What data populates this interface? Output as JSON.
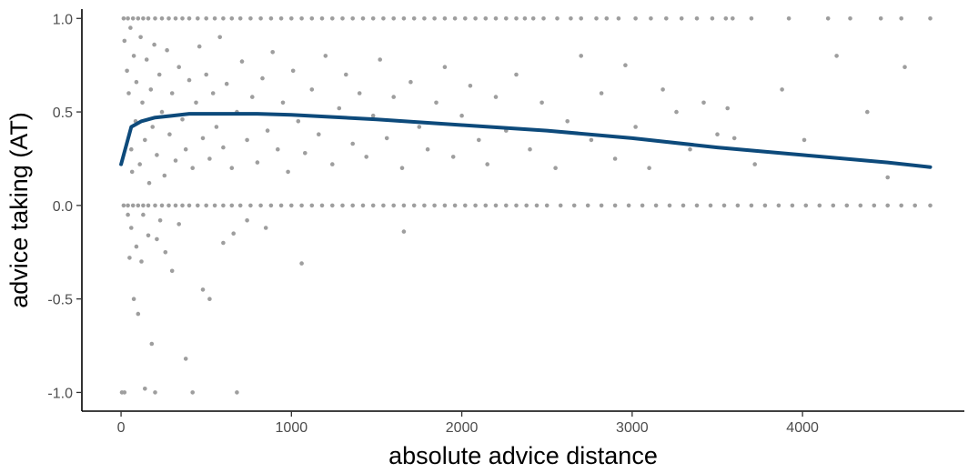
{
  "chart_data": {
    "type": "scatter",
    "title": "",
    "xlabel": "absolute advice distance",
    "ylabel": "advice taking (AT)",
    "xlim": [
      -230,
      4950
    ],
    "ylim": [
      -1.1,
      1.05
    ],
    "x_ticks": [
      {
        "value": 0,
        "label": "0"
      },
      {
        "value": 1000,
        "label": "1000"
      },
      {
        "value": 2000,
        "label": "2000"
      },
      {
        "value": 3000,
        "label": "3000"
      },
      {
        "value": 4000,
        "label": "4000"
      }
    ],
    "y_ticks": [
      {
        "value": 1.0,
        "label": "1.0"
      },
      {
        "value": 0.5,
        "label": "0.5"
      },
      {
        "value": 0.0,
        "label": "0.0"
      },
      {
        "value": -0.5,
        "label": "-0.5"
      },
      {
        "value": -1.0,
        "label": "-1.0"
      }
    ],
    "grid": false,
    "legend": "none",
    "colors": {
      "points": "#9e9e9e",
      "fit_line": "#0d4a7b"
    },
    "series": [
      {
        "kind": "points",
        "points_at_one": [
          [
            15,
            1
          ],
          [
            40,
            1
          ],
          [
            70,
            1
          ],
          [
            100,
            1
          ],
          [
            130,
            1
          ],
          [
            160,
            1
          ],
          [
            200,
            1
          ],
          [
            240,
            1
          ],
          [
            280,
            1
          ],
          [
            320,
            1
          ],
          [
            360,
            1
          ],
          [
            400,
            1
          ],
          [
            450,
            1
          ],
          [
            500,
            1
          ],
          [
            550,
            1
          ],
          [
            600,
            1
          ],
          [
            650,
            1
          ],
          [
            700,
            1
          ],
          [
            760,
            1
          ],
          [
            820,
            1
          ],
          [
            880,
            1
          ],
          [
            940,
            1
          ],
          [
            1000,
            1
          ],
          [
            1060,
            1
          ],
          [
            1120,
            1
          ],
          [
            1180,
            1
          ],
          [
            1240,
            1
          ],
          [
            1300,
            1
          ],
          [
            1360,
            1
          ],
          [
            1420,
            1
          ],
          [
            1480,
            1
          ],
          [
            1540,
            1
          ],
          [
            1600,
            1
          ],
          [
            1660,
            1
          ],
          [
            1720,
            1
          ],
          [
            1780,
            1
          ],
          [
            1840,
            1
          ],
          [
            1900,
            1
          ],
          [
            1960,
            1
          ],
          [
            2020,
            1
          ],
          [
            2080,
            1
          ],
          [
            2140,
            1
          ],
          [
            2200,
            1
          ],
          [
            2260,
            1
          ],
          [
            2320,
            1
          ],
          [
            2370,
            1
          ],
          [
            2420,
            1
          ],
          [
            2480,
            1
          ],
          [
            2560,
            1
          ],
          [
            2640,
            1
          ],
          [
            2700,
            1
          ],
          [
            2790,
            1
          ],
          [
            2850,
            1
          ],
          [
            2920,
            1
          ],
          [
            3020,
            1
          ],
          [
            3110,
            1
          ],
          [
            3200,
            1
          ],
          [
            3290,
            1
          ],
          [
            3380,
            1
          ],
          [
            3470,
            1
          ],
          [
            3550,
            1
          ],
          [
            3590,
            1
          ],
          [
            3700,
            1
          ],
          [
            3920,
            1
          ],
          [
            4150,
            1
          ],
          [
            4280,
            1
          ],
          [
            4460,
            1
          ],
          [
            4580,
            1
          ],
          [
            4750,
            1
          ]
        ],
        "points_at_zero": [
          [
            15,
            0
          ],
          [
            40,
            0
          ],
          [
            70,
            0
          ],
          [
            100,
            0
          ],
          [
            130,
            0
          ],
          [
            160,
            0
          ],
          [
            200,
            0
          ],
          [
            240,
            0
          ],
          [
            280,
            0
          ],
          [
            320,
            0
          ],
          [
            360,
            0
          ],
          [
            400,
            0
          ],
          [
            450,
            0
          ],
          [
            500,
            0
          ],
          [
            550,
            0
          ],
          [
            600,
            0
          ],
          [
            650,
            0
          ],
          [
            700,
            0
          ],
          [
            760,
            0
          ],
          [
            820,
            0
          ],
          [
            880,
            0
          ],
          [
            940,
            0
          ],
          [
            1000,
            0
          ],
          [
            1060,
            0
          ],
          [
            1120,
            0
          ],
          [
            1180,
            0
          ],
          [
            1240,
            0
          ],
          [
            1300,
            0
          ],
          [
            1360,
            0
          ],
          [
            1420,
            0
          ],
          [
            1480,
            0
          ],
          [
            1540,
            0
          ],
          [
            1600,
            0
          ],
          [
            1660,
            0
          ],
          [
            1720,
            0
          ],
          [
            1780,
            0
          ],
          [
            1840,
            0
          ],
          [
            1900,
            0
          ],
          [
            1960,
            0
          ],
          [
            2020,
            0
          ],
          [
            2080,
            0
          ],
          [
            2140,
            0
          ],
          [
            2200,
            0
          ],
          [
            2260,
            0
          ],
          [
            2320,
            0
          ],
          [
            2380,
            0
          ],
          [
            2440,
            0
          ],
          [
            2500,
            0
          ],
          [
            2580,
            0
          ],
          [
            2660,
            0
          ],
          [
            2740,
            0
          ],
          [
            2820,
            0
          ],
          [
            2900,
            0
          ],
          [
            2980,
            0
          ],
          [
            3060,
            0
          ],
          [
            3140,
            0
          ],
          [
            3220,
            0
          ],
          [
            3300,
            0
          ],
          [
            3380,
            0
          ],
          [
            3460,
            0
          ],
          [
            3540,
            0
          ],
          [
            3620,
            0
          ],
          [
            3700,
            0
          ],
          [
            3780,
            0
          ],
          [
            3860,
            0
          ],
          [
            3940,
            0
          ],
          [
            4020,
            0
          ],
          [
            4100,
            0
          ],
          [
            4180,
            0
          ],
          [
            4260,
            0
          ],
          [
            4340,
            0
          ],
          [
            4420,
            0
          ],
          [
            4500,
            0
          ],
          [
            4580,
            0
          ],
          [
            4660,
            0
          ],
          [
            4750,
            0
          ]
        ],
        "points_between": [
          [
            20,
            0.88
          ],
          [
            35,
            0.72
          ],
          [
            45,
            0.6
          ],
          [
            55,
            0.95
          ],
          [
            60,
            0.3
          ],
          [
            65,
            0.18
          ],
          [
            75,
            0.8
          ],
          [
            85,
            0.45
          ],
          [
            90,
            0.66
          ],
          [
            110,
            0.22
          ],
          [
            115,
            0.9
          ],
          [
            125,
            0.55
          ],
          [
            140,
            0.35
          ],
          [
            150,
            0.78
          ],
          [
            165,
            0.12
          ],
          [
            175,
            0.62
          ],
          [
            185,
            0.42
          ],
          [
            195,
            0.86
          ],
          [
            210,
            0.27
          ],
          [
            225,
            0.7
          ],
          [
            240,
            0.5
          ],
          [
            255,
            0.16
          ],
          [
            270,
            0.83
          ],
          [
            285,
            0.38
          ],
          [
            300,
            0.6
          ],
          [
            320,
            0.24
          ],
          [
            340,
            0.74
          ],
          [
            360,
            0.46
          ],
          [
            380,
            0.3
          ],
          [
            400,
            0.67
          ],
          [
            420,
            0.2
          ],
          [
            440,
            0.55
          ],
          [
            460,
            0.85
          ],
          [
            480,
            0.36
          ],
          [
            500,
            0.7
          ],
          [
            520,
            0.25
          ],
          [
            540,
            0.6
          ],
          [
            560,
            0.42
          ],
          [
            580,
            0.9
          ],
          [
            600,
            0.31
          ],
          [
            620,
            0.65
          ],
          [
            650,
            0.2
          ],
          [
            680,
            0.5
          ],
          [
            710,
            0.77
          ],
          [
            740,
            0.35
          ],
          [
            770,
            0.58
          ],
          [
            800,
            0.23
          ],
          [
            830,
            0.68
          ],
          [
            860,
            0.4
          ],
          [
            890,
            0.82
          ],
          [
            920,
            0.3
          ],
          [
            950,
            0.55
          ],
          [
            980,
            0.18
          ],
          [
            1010,
            0.72
          ],
          [
            1040,
            0.45
          ],
          [
            1080,
            0.28
          ],
          [
            1120,
            0.62
          ],
          [
            1160,
            0.38
          ],
          [
            1200,
            0.8
          ],
          [
            1240,
            0.22
          ],
          [
            1280,
            0.52
          ],
          [
            1320,
            0.7
          ],
          [
            1360,
            0.33
          ],
          [
            1400,
            0.6
          ],
          [
            1440,
            0.26
          ],
          [
            1480,
            0.48
          ],
          [
            1520,
            0.78
          ],
          [
            1560,
            0.36
          ],
          [
            1600,
            0.58
          ],
          [
            1650,
            0.2
          ],
          [
            1700,
            0.66
          ],
          [
            1750,
            0.42
          ],
          [
            1800,
            0.3
          ],
          [
            1850,
            0.55
          ],
          [
            1900,
            0.74
          ],
          [
            1950,
            0.26
          ],
          [
            2000,
            0.48
          ],
          [
            2050,
            0.64
          ],
          [
            2100,
            0.35
          ],
          [
            2150,
            0.22
          ],
          [
            2200,
            0.58
          ],
          [
            2260,
            0.4
          ],
          [
            2320,
            0.7
          ],
          [
            2400,
            0.3
          ],
          [
            2470,
            0.55
          ],
          [
            2550,
            0.2
          ],
          [
            2620,
            0.45
          ],
          [
            2700,
            0.8
          ],
          [
            2760,
            0.35
          ],
          [
            2820,
            0.6
          ],
          [
            2900,
            0.25
          ],
          [
            2960,
            0.75
          ],
          [
            3020,
            0.42
          ],
          [
            3100,
            0.2
          ],
          [
            3180,
            0.62
          ],
          [
            3260,
            0.5
          ],
          [
            3340,
            0.3
          ],
          [
            3420,
            0.55
          ],
          [
            3500,
            0.38
          ],
          [
            3560,
            0.52
          ],
          [
            3600,
            0.36
          ],
          [
            3720,
            0.22
          ],
          [
            3880,
            0.62
          ],
          [
            4010,
            0.35
          ],
          [
            4200,
            0.8
          ],
          [
            4380,
            0.5
          ],
          [
            4500,
            0.15
          ],
          [
            4600,
            0.74
          ]
        ],
        "points_below_zero": [
          [
            5,
            -1.0
          ],
          [
            20,
            -1.0
          ],
          [
            40,
            -0.05
          ],
          [
            50,
            -0.28
          ],
          [
            60,
            -0.12
          ],
          [
            75,
            -0.5
          ],
          [
            90,
            -0.22
          ],
          [
            100,
            -0.58
          ],
          [
            120,
            -0.3
          ],
          [
            140,
            -0.98
          ],
          [
            160,
            -0.16
          ],
          [
            180,
            -0.74
          ],
          [
            200,
            -1.0
          ],
          [
            230,
            -0.08
          ],
          [
            260,
            -0.25
          ],
          [
            300,
            -0.35
          ],
          [
            340,
            -0.1
          ],
          [
            380,
            -0.82
          ],
          [
            420,
            -1.0
          ],
          [
            480,
            -0.45
          ],
          [
            520,
            -0.5
          ],
          [
            600,
            -0.2
          ],
          [
            660,
            -0.15
          ],
          [
            680,
            -1.0
          ],
          [
            740,
            -0.08
          ],
          [
            850,
            -0.12
          ],
          [
            1060,
            -0.31
          ],
          [
            1660,
            -0.14
          ],
          [
            130,
            -0.05
          ],
          [
            210,
            -0.18
          ]
        ]
      },
      {
        "kind": "fit-line",
        "points": [
          [
            0,
            0.22
          ],
          [
            30,
            0.32
          ],
          [
            60,
            0.42
          ],
          [
            120,
            0.45
          ],
          [
            200,
            0.47
          ],
          [
            300,
            0.48
          ],
          [
            400,
            0.49
          ],
          [
            600,
            0.49
          ],
          [
            800,
            0.49
          ],
          [
            1000,
            0.485
          ],
          [
            1500,
            0.46
          ],
          [
            2000,
            0.43
          ],
          [
            2500,
            0.4
          ],
          [
            3000,
            0.36
          ],
          [
            3500,
            0.31
          ],
          [
            4000,
            0.27
          ],
          [
            4500,
            0.23
          ],
          [
            4750,
            0.205
          ]
        ]
      }
    ]
  }
}
